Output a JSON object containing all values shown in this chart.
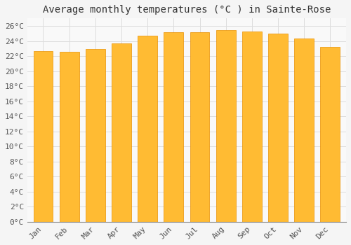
{
  "months": [
    "Jan",
    "Feb",
    "Mar",
    "Apr",
    "May",
    "Jun",
    "Jul",
    "Aug",
    "Sep",
    "Oct",
    "Nov",
    "Dec"
  ],
  "values": [
    22.7,
    22.6,
    22.9,
    23.7,
    24.7,
    25.2,
    25.2,
    25.4,
    25.3,
    25.0,
    24.3,
    23.2
  ],
  "bar_color": "#FFBB33",
  "bar_edge_color": "#E89000",
  "title": "Average monthly temperatures (°C ) in Sainte-Rose",
  "ylim": [
    0,
    27
  ],
  "ytick_step": 2,
  "background_color": "#f5f5f5",
  "plot_background": "#f9f9f9",
  "grid_color": "#dddddd",
  "title_fontsize": 10,
  "tick_fontsize": 8,
  "font_family": "monospace"
}
